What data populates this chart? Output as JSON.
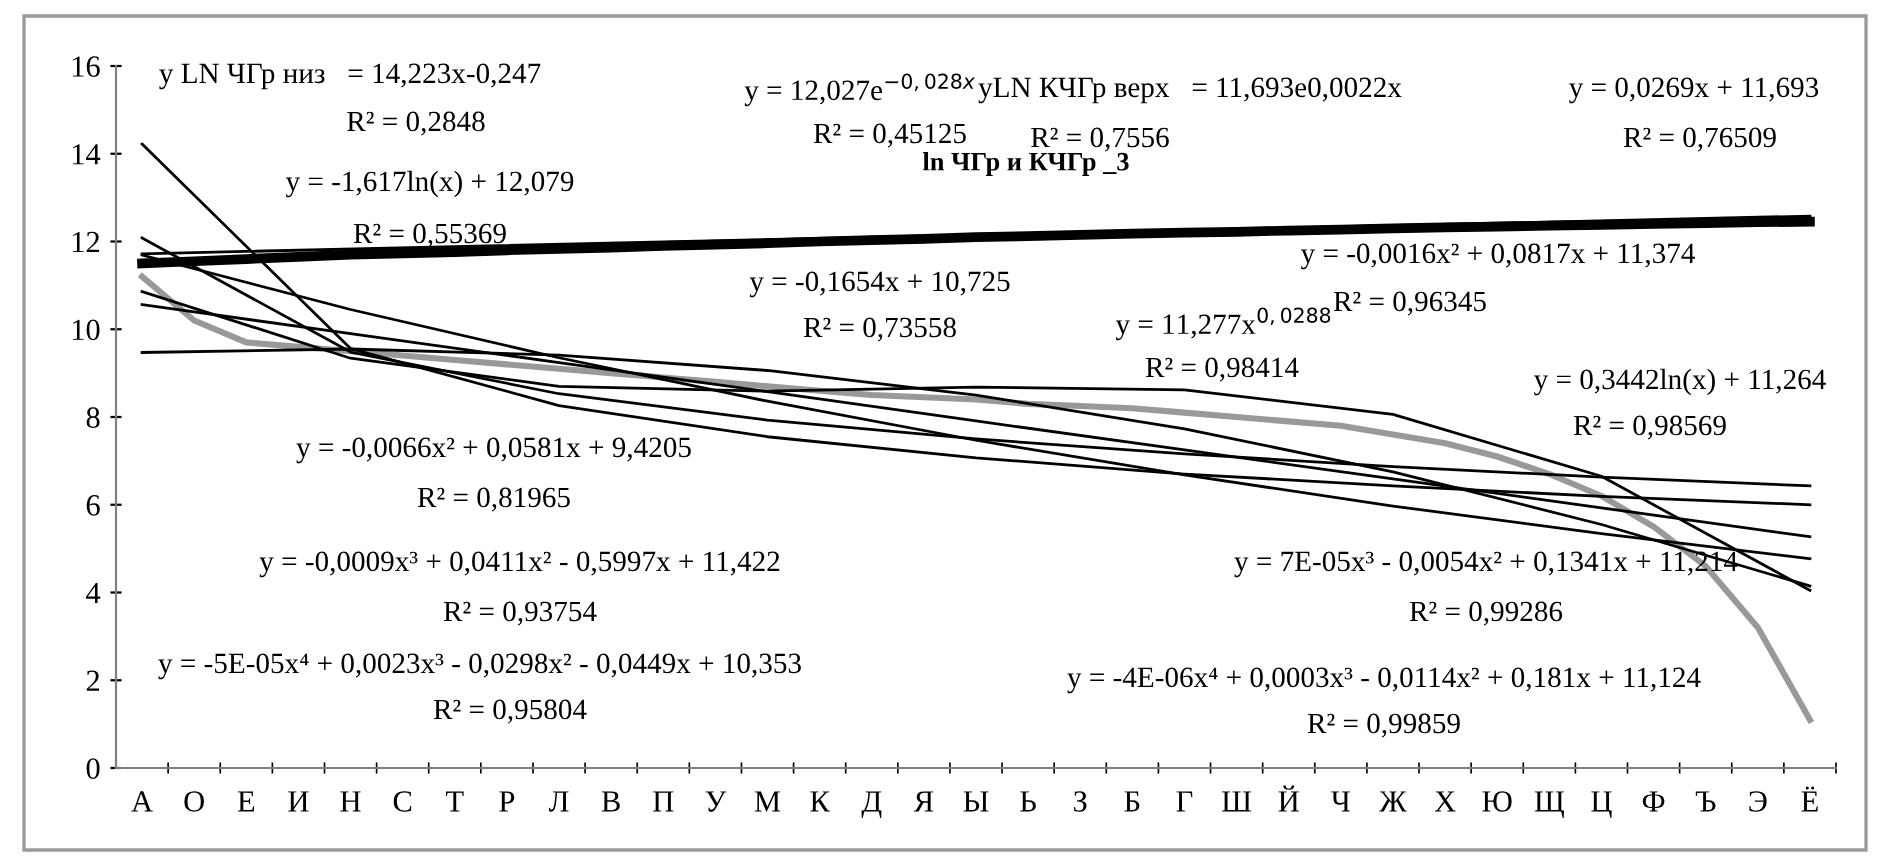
{
  "chart_data": {
    "type": "line",
    "title": "ln ЧГр и КЧГр _3",
    "categories": [
      "А",
      "О",
      "Е",
      "И",
      "Н",
      "С",
      "Т",
      "Р",
      "Л",
      "В",
      "П",
      "У",
      "М",
      "К",
      "Д",
      "Я",
      "Ы",
      "Ь",
      "З",
      "Б",
      "Г",
      "Ш",
      "Й",
      "Ч",
      "Ж",
      "Х",
      "Ю",
      "Щ",
      "Ц",
      "Ф",
      "Ъ",
      "Э",
      "Ё"
    ],
    "ylim": [
      0,
      16
    ],
    "yticks": [
      0,
      2,
      4,
      6,
      8,
      10,
      12,
      14,
      16
    ],
    "grid": false,
    "legend": false,
    "series": [
      {
        "color": "#999999",
        "values": [
          11.2,
          10.2,
          9.7,
          9.6,
          9.5,
          9.4,
          9.3,
          9.2,
          9.1,
          9.0,
          8.9,
          8.8,
          8.7,
          8.6,
          8.5,
          8.45,
          8.4,
          8.3,
          8.25,
          8.2,
          8.1,
          8.0,
          7.9,
          7.8,
          7.6,
          7.4,
          7.1,
          6.7,
          6.2,
          5.5,
          4.6,
          3.2,
          1.1
        ]
      },
      {
        "color": "#000000",
        "values": [
          11.5,
          11.55,
          11.6,
          11.65,
          11.7,
          11.73,
          11.76,
          11.8,
          11.83,
          11.86,
          11.9,
          11.93,
          11.96,
          12.0,
          12.03,
          12.06,
          12.1,
          12.12,
          12.15,
          12.18,
          12.2,
          12.22,
          12.25,
          12.27,
          12.3,
          12.32,
          12.34,
          12.36,
          12.38,
          12.4,
          12.42,
          12.44,
          12.45
        ]
      },
      {
        "type": "line",
        "color": "#000000",
        "x": [
          "А",
          "Н",
          "Л",
          "М",
          "Ы",
          "Г",
          "Ж",
          "Ц",
          "Ё"
        ],
        "values": [
          14.22,
          9.56,
          8.26,
          7.55,
          7.07,
          6.7,
          6.43,
          6.19,
          6.0
        ]
      },
      {
        "type": "line",
        "color": "#000000",
        "x": [
          "А",
          "Н",
          "Л",
          "М",
          "Ы",
          "Г",
          "Ж",
          "Ц",
          "Ё"
        ],
        "values": [
          12.08,
          9.48,
          8.53,
          7.93,
          7.5,
          7.16,
          6.87,
          6.63,
          6.43
        ]
      },
      {
        "type": "line",
        "color": "#000000",
        "x": [
          "А",
          "Н",
          "Л",
          "М",
          "Ы",
          "Г",
          "Ж",
          "Ц",
          "Ё"
        ],
        "values": [
          10.56,
          9.9,
          9.24,
          8.58,
          7.91,
          7.25,
          6.59,
          5.93,
          5.27
        ]
      },
      {
        "type": "line",
        "color": "#000000",
        "x": [
          "А",
          "Н",
          "Л",
          "М",
          "Ы",
          "Г",
          "Ж",
          "Ц",
          "Ё"
        ],
        "values": [
          9.47,
          9.55,
          9.41,
          9.06,
          8.5,
          7.73,
          6.75,
          5.55,
          4.15
        ]
      },
      {
        "type": "line",
        "color": "#000000",
        "x": [
          "А",
          "Н",
          "Л",
          "М",
          "Ы",
          "Г",
          "Ж",
          "Ц",
          "Ё"
        ],
        "values": [
          11.69,
          10.45,
          9.35,
          8.36,
          7.47,
          6.68,
          5.97,
          5.34,
          4.77
        ]
      },
      {
        "type": "line",
        "color": "#000000",
        "x": [
          "А",
          "Н",
          "Л",
          "М",
          "Ы",
          "Г",
          "Ж",
          "Ц",
          "Ё"
        ],
        "values": [
          10.86,
          9.34,
          8.7,
          8.59,
          8.68,
          8.62,
          8.06,
          6.65,
          4.05
        ]
      },
      {
        "type": "line",
        "color": "#000000",
        "x": [
          "А",
          "Ё"
        ],
        "values": [
          11.72,
          12.58
        ]
      }
    ],
    "annotations": [
      "y LN ЧГр низ   = 14,223x-0,247",
      "R² = 0,2848",
      "y = 12,027e$^{−0,028x}$",
      "R² = 0,45125",
      "yLN КЧГр верх   = 11,693e0,0022x",
      "R² = 0,7556",
      "y = 0,0269x + 11,693",
      "R² = 0,76509",
      "y = -1,617ln(x) + 12,079",
      "R² = 0,55369",
      "y = -0,1654x + 10,725",
      "R² = 0,73558",
      "y = -0,0016x² + 0,0817x + 11,374",
      "R² = 0,96345",
      "y = 11,277x$^{0,0288}$",
      "R² = 0,98414",
      "y = 0,3442ln(x) + 11,264",
      "R² = 0,98569",
      "y = -0,0066x² + 0,0581x + 9,4205",
      "R² = 0,81965",
      "y = -0,0009x³ + 0,0411x² - 0,5997x + 11,422",
      "R² = 0,93754",
      "y = -5E-05x⁴ + 0,0023x³ - 0,0298x² - 0,0449x + 10,353",
      "R² = 0,95804",
      "y = 7E-05x³ - 0,0054x² + 0,1341x + 11,214",
      "R² = 0,99286",
      "y = -4E-06x⁴ + 0,0003x³ - 0,0114x² + 0,181x + 11,124",
      "R² = 0,99859"
    ]
  }
}
